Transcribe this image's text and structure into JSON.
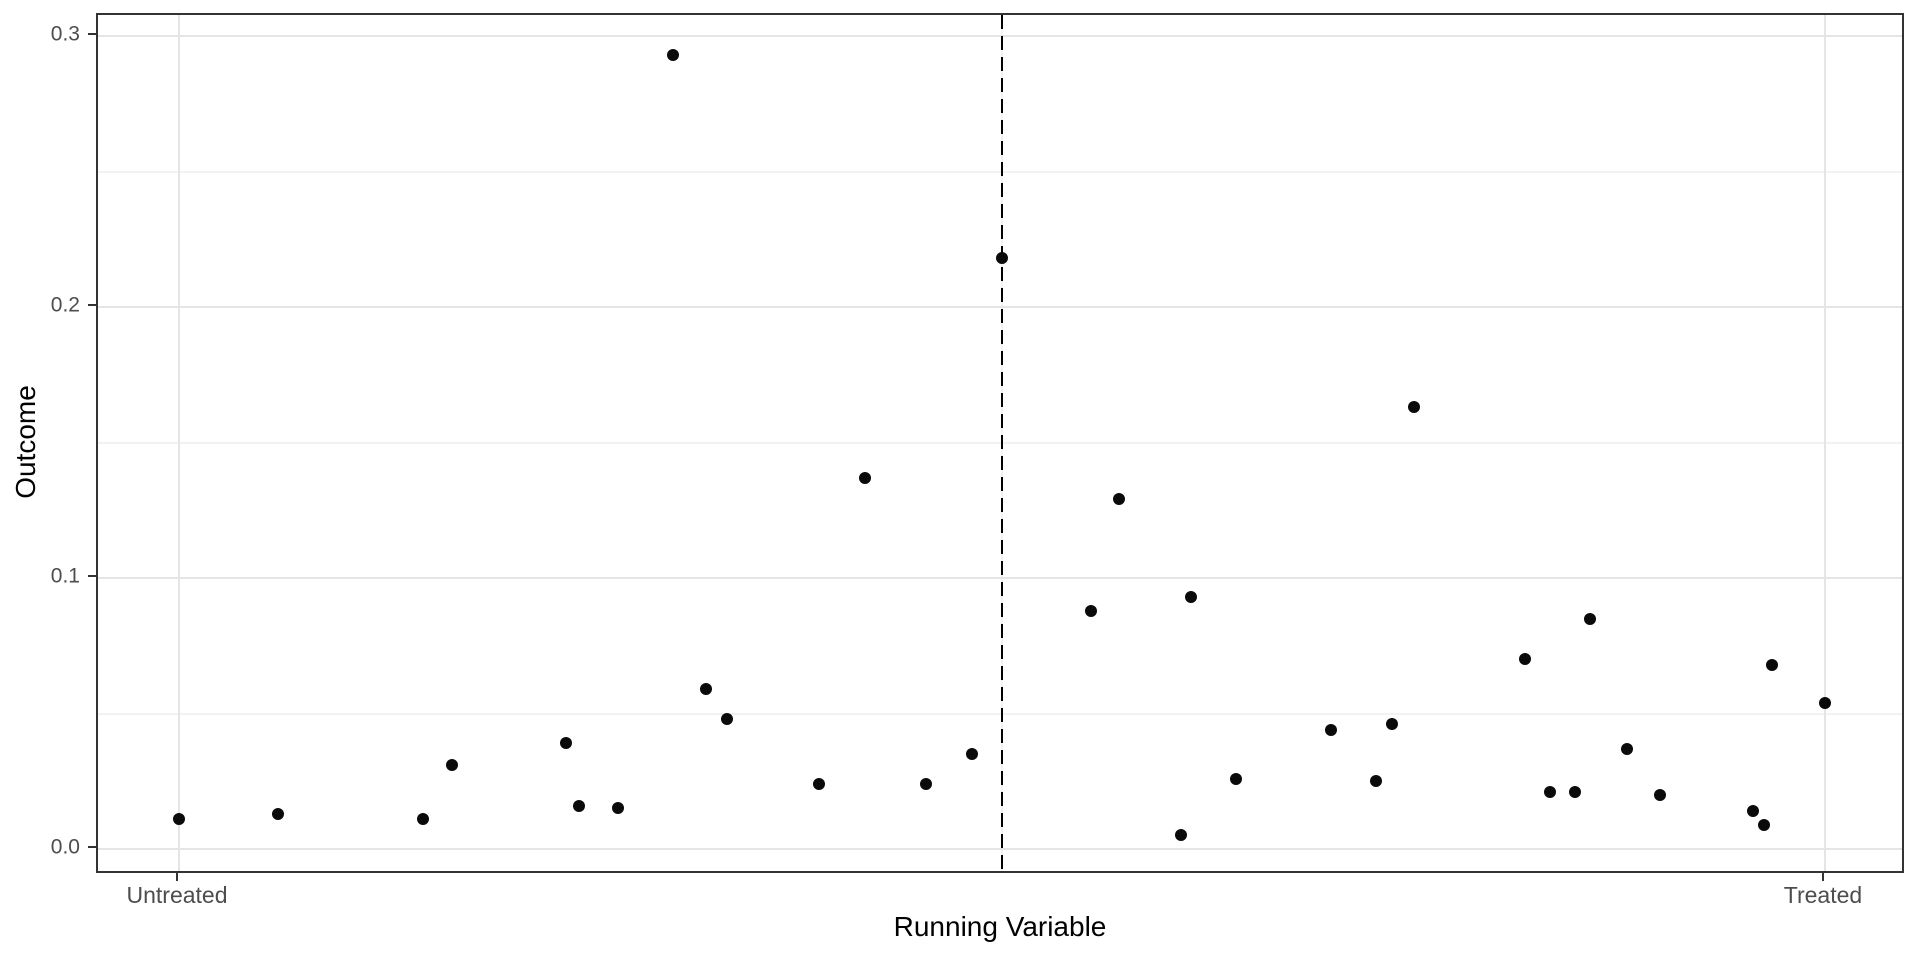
{
  "chart_data": {
    "type": "scatter",
    "title": "",
    "xlabel": "Running Variable",
    "ylabel": "Outcome",
    "x_tick_labels": [
      "Untreated",
      "Treated"
    ],
    "x_tick_values": [
      0,
      1
    ],
    "y_tick_labels": [
      "0.0",
      "0.1",
      "0.2",
      "0.3"
    ],
    "y_tick_values": [
      0.0,
      0.1,
      0.2,
      0.3
    ],
    "y_minor_gridlines": [
      0.05,
      0.15,
      0.25
    ],
    "x_minor_gridlines": [
      0.5
    ],
    "xlim": [
      -0.049,
      1.05
    ],
    "ylim": [
      -0.0096,
      0.3078
    ],
    "grid": true,
    "legend": false,
    "cutoff_line": {
      "x": 0.5,
      "style": "dashed",
      "color": "#000000"
    },
    "point_color": "#0a0a0a",
    "points": [
      {
        "x": 0.0,
        "y": 0.011
      },
      {
        "x": 0.06,
        "y": 0.013
      },
      {
        "x": 0.148,
        "y": 0.011
      },
      {
        "x": 0.166,
        "y": 0.031
      },
      {
        "x": 0.235,
        "y": 0.039
      },
      {
        "x": 0.243,
        "y": 0.016
      },
      {
        "x": 0.267,
        "y": 0.015
      },
      {
        "x": 0.3,
        "y": 0.293
      },
      {
        "x": 0.32,
        "y": 0.059
      },
      {
        "x": 0.333,
        "y": 0.048
      },
      {
        "x": 0.389,
        "y": 0.024
      },
      {
        "x": 0.417,
        "y": 0.137
      },
      {
        "x": 0.454,
        "y": 0.024
      },
      {
        "x": 0.482,
        "y": 0.035
      },
      {
        "x": 0.5,
        "y": 0.218
      },
      {
        "x": 0.554,
        "y": 0.088
      },
      {
        "x": 0.571,
        "y": 0.129
      },
      {
        "x": 0.609,
        "y": 0.005
      },
      {
        "x": 0.615,
        "y": 0.093
      },
      {
        "x": 0.642,
        "y": 0.026
      },
      {
        "x": 0.7,
        "y": 0.044
      },
      {
        "x": 0.727,
        "y": 0.025
      },
      {
        "x": 0.737,
        "y": 0.046
      },
      {
        "x": 0.75,
        "y": 0.163
      },
      {
        "x": 0.818,
        "y": 0.07
      },
      {
        "x": 0.833,
        "y": 0.021
      },
      {
        "x": 0.848,
        "y": 0.021
      },
      {
        "x": 0.857,
        "y": 0.085
      },
      {
        "x": 0.88,
        "y": 0.037
      },
      {
        "x": 0.9,
        "y": 0.02
      },
      {
        "x": 0.956,
        "y": 0.014
      },
      {
        "x": 0.963,
        "y": 0.009
      },
      {
        "x": 0.968,
        "y": 0.068
      },
      {
        "x": 1.0,
        "y": 0.054
      }
    ]
  },
  "colors": {
    "panel_border": "#333333",
    "grid_major": "#e5e5e5",
    "grid_minor": "#f2f2f2",
    "tick": "#333333",
    "tick_label": "#4d4d4d",
    "axis_title": "#000000",
    "point": "#0a0a0a",
    "cutoff": "#000000",
    "background": "#ffffff"
  }
}
